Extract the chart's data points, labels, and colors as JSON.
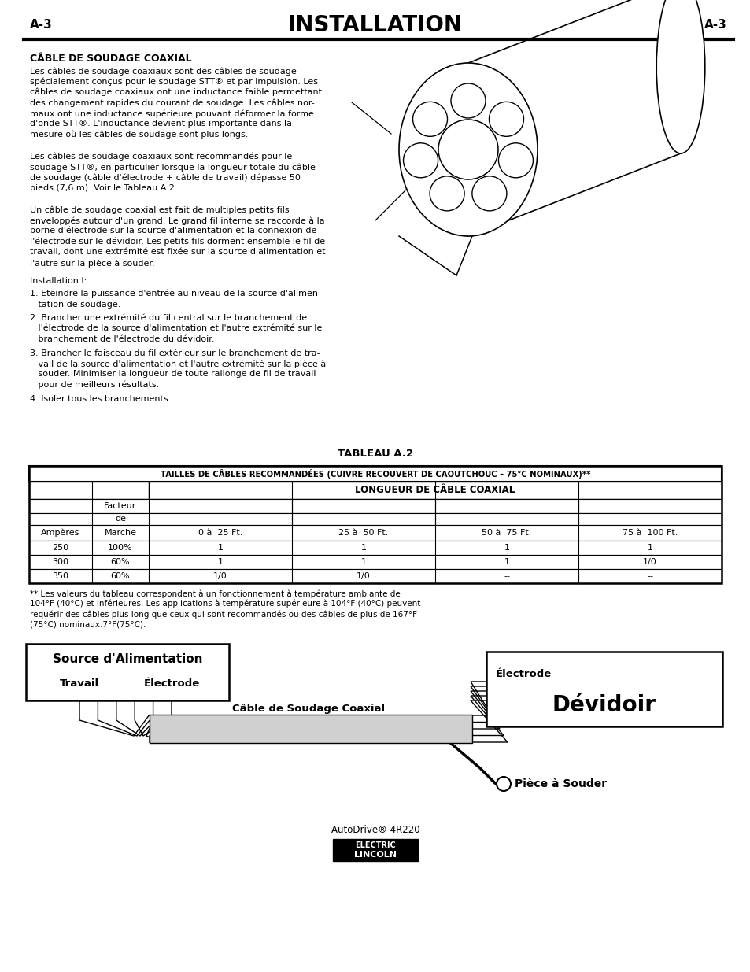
{
  "page_label_left": "A-3",
  "page_label_right": "A-3",
  "title": "INSTALLATION",
  "section_title": "CÂBLE DE SOUDAGE COAXIAL",
  "para1_lines": [
    "Les câbles de soudage coaxiaux sont des câbles de soudage",
    "spécialement conçus pour le soudage STT® et par impulsion. Les",
    "câbles de soudage coaxiaux ont une inductance faible permettant",
    "des changement rapides du courant de soudage. Les câbles nor-",
    "maux ont une inductance supérieure pouvant déformer la forme",
    "d'onde STT®. L'inductance devient plus importante dans la",
    "mesure où les câbles de soudage sont plus longs."
  ],
  "para2_lines": [
    "Les câbles de soudage coaxiaux sont recommandés pour le",
    "soudage STT®, en particulier lorsque la longueur totale du câble",
    "de soudage (câble d'électrode + câble de travail) dépasse 50",
    "pieds (7,6 m). Voir le Tableau A.2."
  ],
  "para3_lines": [
    "Un câble de soudage coaxial est fait de multiples petits fils",
    "enveloppés autour d'un grand. Le grand fil interne se raccorde à la",
    "borne d'électrode sur la source d'alimentation et la connexion de",
    "l'électrode sur le dévidoir. Les petits fils dorment ensemble le fil de",
    "travail, dont une extrémité est fixée sur la source d'alimentation et",
    "l'autre sur la pièce à souder."
  ],
  "install_label": "Installation I:",
  "step1_lines": [
    "1. Eteindre la puissance d'entrée au niveau de la source d'alimen-",
    "   tation de soudage."
  ],
  "step2_lines": [
    "2. Brancher une extrémité du fil central sur le branchement de",
    "   l'électrode de la source d'alimentation et l'autre extrémité sur le",
    "   branchement de l'électrode du dévidoir."
  ],
  "step3_lines": [
    "3. Brancher le faisceau du fil extérieur sur le branchement de tra-",
    "   vail de la source d'alimentation et l'autre extrémité sur la pièce à",
    "   souder. Minimiser la longueur de toute rallonge de fil de travail",
    "   pour de meilleurs résultats."
  ],
  "step4": "4. Isoler tous les branchements.",
  "tableau_title": "TABLEAU A.2",
  "table_header_main": "TAILLES DE CÂBLES RECOMMANDÉES (CUIVRE RECOUVERT DE CAOUTCHOUC – 75°C NOMINAUX)**",
  "table_header_sub": "LONGUEUR DE CÂBLE COAXIAL",
  "rows": [
    [
      "250",
      "100%",
      "1",
      "1",
      "1",
      "1"
    ],
    [
      "300",
      "60%",
      "1",
      "1",
      "1",
      "1/0"
    ],
    [
      "350",
      "60%",
      "1/0",
      "1/0",
      "--",
      "--"
    ]
  ],
  "footnote_lines": [
    "** Les valeurs du tableau correspondent à un fonctionnement à température ambiante de",
    "104°F (40°C) et inférieures. Les applications à température supérieure à 104°F (40°C) peuvent",
    "requérir des câbles plus long que ceux qui sont recommandés ou des câbles de plus de 167°F",
    "(75°C) nominaux.7°F(75°C)."
  ],
  "diag_source_label": "Source d'Alimentation",
  "diag_travail": "Travail",
  "diag_electrode_left": "Électrode",
  "diag_cable_label": "Câble de Soudage Coaxial",
  "diag_electrode_right": "Électrode",
  "diag_devidoir": "Dévidoir",
  "diag_piece": "Pièce à Souder",
  "footer_model": "AutoDrive® 4R220",
  "bg_color": "#ffffff",
  "text_color": "#000000"
}
